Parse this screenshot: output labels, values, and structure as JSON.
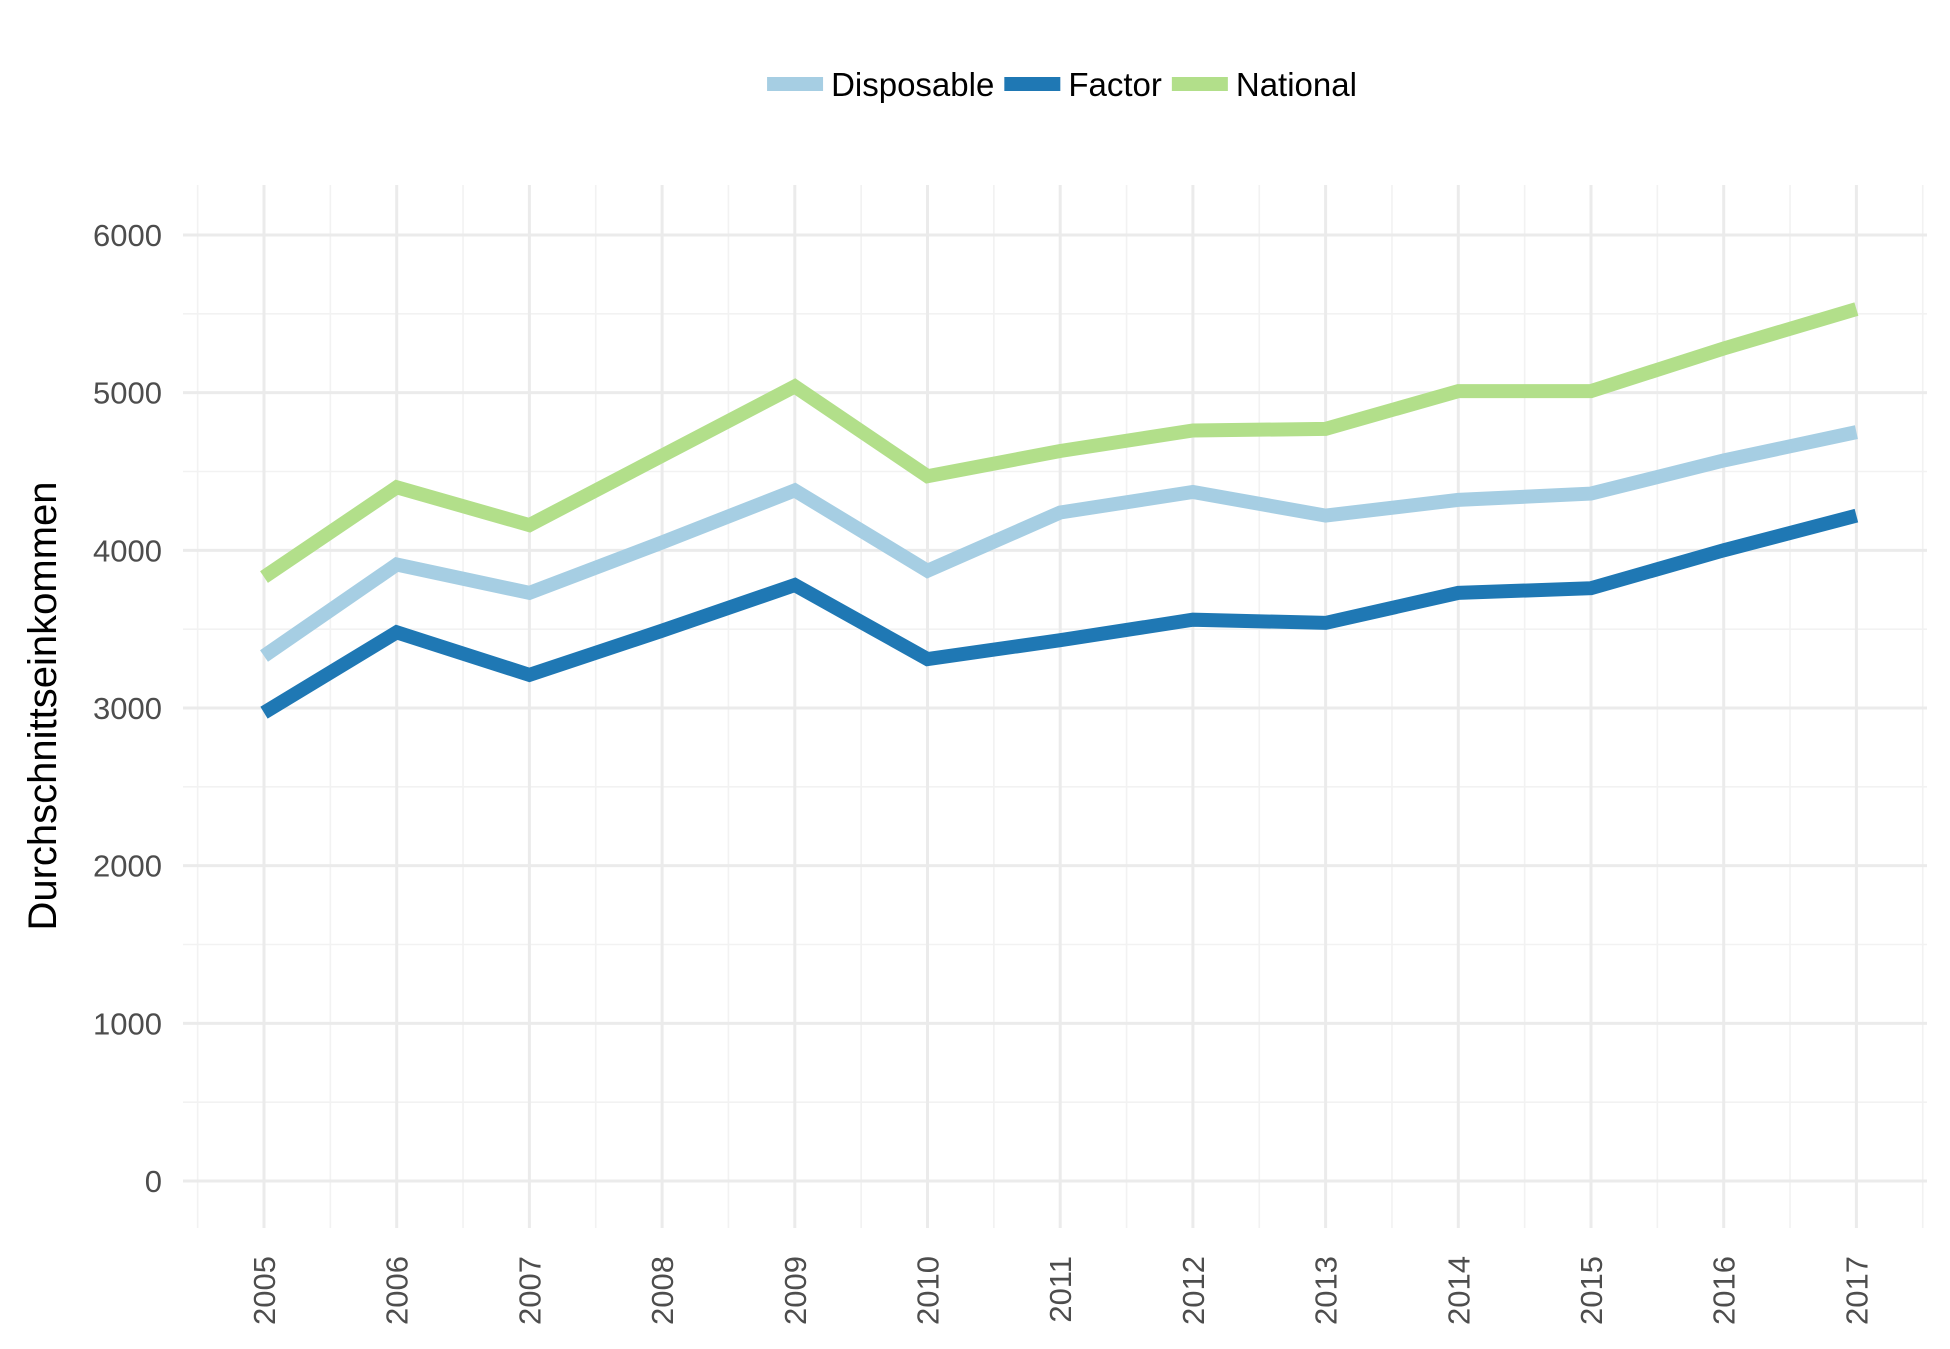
{
  "chart_data": {
    "type": "line",
    "x": [
      "2005",
      "2006",
      "2007",
      "2008",
      "2009",
      "2010",
      "2011",
      "2012",
      "2013",
      "2014",
      "2015",
      "2016",
      "2017"
    ],
    "series": [
      {
        "name": "Disposable",
        "color": "#a6cee3",
        "values": [
          3330,
          3910,
          3730,
          4050,
          4380,
          3870,
          4240,
          4370,
          4220,
          4320,
          4360,
          4570,
          4750
        ]
      },
      {
        "name": "Factor",
        "color": "#1f78b4",
        "values": [
          2970,
          3480,
          3210,
          3490,
          3780,
          3310,
          3430,
          3560,
          3540,
          3730,
          3760,
          4000,
          4220
        ]
      },
      {
        "name": "National",
        "color": "#b2df8a",
        "values": [
          3830,
          4400,
          4160,
          4600,
          5040,
          4470,
          4630,
          4760,
          4770,
          5010,
          5010,
          5280,
          5530
        ]
      }
    ],
    "xlabel": "",
    "ylabel": "Durchschnittseinkommen",
    "ylim": [
      0,
      6000
    ],
    "yticks": [
      "0",
      "1000",
      "2000",
      "3000",
      "4000",
      "5000",
      "6000"
    ],
    "grid": true,
    "legend_position": "top"
  }
}
